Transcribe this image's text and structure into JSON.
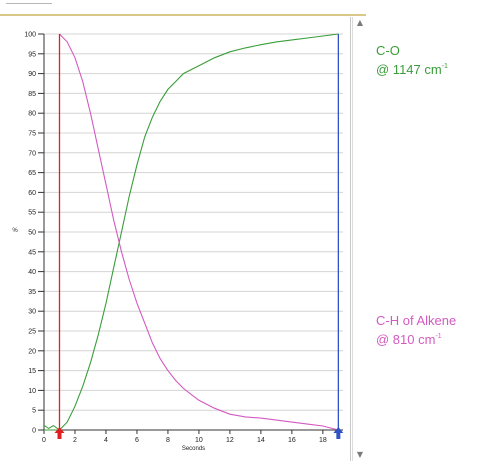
{
  "colors": {
    "co": "#3a9d3a",
    "ch": "#d35ac2",
    "start_marker": "#e02020",
    "end_marker": "#2f53c4",
    "grid": "#d4d4d4",
    "axis": "#333333"
  },
  "legend": {
    "co": {
      "line1": "C-O",
      "line2": "@ 1147 cm",
      "sup": "-1"
    },
    "ch": {
      "line1": "C-H of Alkene",
      "line2": "@ 810 cm",
      "sup": "-1"
    }
  },
  "scrollbar": {
    "up_icon": "triangle-up-icon",
    "down_icon": "triangle-down-icon"
  },
  "chart_data": {
    "type": "line",
    "xlabel": "Seconds",
    "ylabel": "%",
    "xlim": [
      0,
      19.3
    ],
    "ylim": [
      0,
      100
    ],
    "xticks": [
      0,
      2,
      4,
      6,
      8,
      10,
      12,
      14,
      16,
      18
    ],
    "yticks": [
      0,
      5,
      10,
      15,
      20,
      25,
      30,
      35,
      40,
      45,
      50,
      55,
      60,
      65,
      70,
      75,
      80,
      85,
      90,
      95,
      100
    ],
    "grid": true,
    "markers": {
      "start_x": 1.0,
      "end_x": 19.0
    },
    "series": [
      {
        "name": "C-O",
        "color": "#3a9d3a",
        "x": [
          0,
          0.5,
          1.0,
          1.5,
          2.0,
          2.5,
          3.0,
          3.5,
          4.0,
          4.5,
          5.0,
          5.5,
          6.0,
          6.5,
          7.0,
          7.5,
          8.0,
          8.5,
          9.0,
          9.5,
          10.0,
          11.0,
          12.0,
          13.0,
          14.0,
          15.0,
          16.0,
          17.0,
          18.0,
          19.0
        ],
        "y": [
          0,
          0,
          0,
          2,
          6,
          11,
          17,
          24,
          32,
          41,
          50,
          59,
          67,
          74,
          79,
          83,
          86,
          88,
          90,
          91,
          92,
          94,
          95.5,
          96.5,
          97.3,
          98,
          98.5,
          99,
          99.5,
          100
        ]
      },
      {
        "name": "C-H of Alkene",
        "color": "#d35ac2",
        "x": [
          1.0,
          1.5,
          2.0,
          2.5,
          3.0,
          3.5,
          4.0,
          4.5,
          5.0,
          5.5,
          6.0,
          6.5,
          7.0,
          7.5,
          8.0,
          8.5,
          9.0,
          9.5,
          10.0,
          11.0,
          12.0,
          13.0,
          14.0,
          15.0,
          16.0,
          17.0,
          18.0,
          19.0
        ],
        "y": [
          100,
          98,
          94,
          88,
          80,
          71,
          62,
          53,
          45,
          38,
          32,
          27,
          22,
          18,
          15,
          12.5,
          10.5,
          9,
          7.5,
          5.5,
          4,
          3.3,
          3,
          2.5,
          2,
          1.5,
          1,
          0
        ]
      }
    ]
  }
}
